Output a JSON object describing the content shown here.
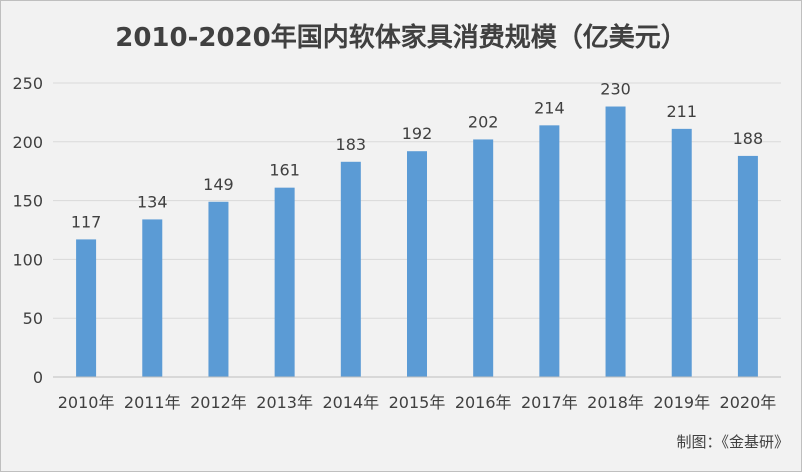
{
  "chart_data": {
    "type": "bar",
    "title": "2010-2020年国内软体家具消费规模（亿美元）",
    "categories": [
      "2010年",
      "2011年",
      "2012年",
      "2013年",
      "2014年",
      "2015年",
      "2016年",
      "2017年",
      "2018年",
      "2019年",
      "2020年"
    ],
    "values": [
      117,
      134,
      149,
      161,
      183,
      192,
      202,
      214,
      230,
      211,
      188
    ],
    "yticks": [
      "0",
      "50",
      "100",
      "150",
      "200",
      "250"
    ],
    "ylim": [
      0,
      250
    ],
    "grid": true,
    "bar_color": "#5b9bd5",
    "legend": "none"
  },
  "source_note": "制图：《金基研》"
}
